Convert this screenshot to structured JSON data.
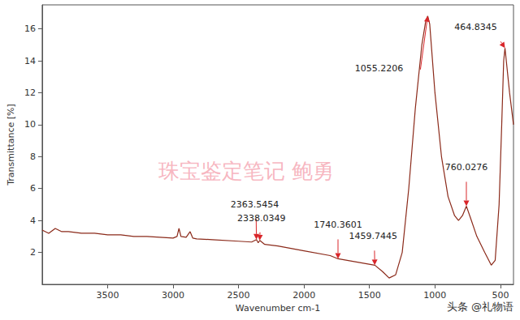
{
  "chart_data": {
    "type": "line",
    "x_label": "Wavenumber cm-1",
    "y_label": "Transmittance [%]",
    "color": "#8b2a1a",
    "grid": false,
    "x": [
      4000,
      3950,
      3900,
      3850,
      3800,
      3700,
      3600,
      3500,
      3400,
      3300,
      3200,
      3100,
      3000,
      2970,
      2955,
      2940,
      2900,
      2870,
      2850,
      2820,
      2700,
      2500,
      2400,
      2363,
      2350,
      2338,
      2300,
      2200,
      2000,
      1800,
      1740,
      1600,
      1459,
      1400,
      1350,
      1300,
      1250,
      1200,
      1150,
      1100,
      1070,
      1055,
      1040,
      1000,
      950,
      900,
      850,
      820,
      790,
      760,
      730,
      680,
      620,
      570,
      540,
      510,
      490,
      475,
      465,
      455,
      430,
      400
    ],
    "values": [
      3.4,
      3.2,
      3.5,
      3.3,
      3.3,
      3.2,
      3.2,
      3.1,
      3.1,
      3.0,
      3.0,
      2.95,
      2.9,
      3.0,
      3.5,
      3.0,
      2.95,
      3.3,
      2.9,
      2.85,
      2.8,
      2.7,
      2.65,
      2.8,
      2.6,
      2.75,
      2.5,
      2.4,
      2.1,
      1.8,
      1.6,
      1.4,
      1.2,
      0.8,
      0.4,
      0.6,
      2.0,
      6.0,
      11.0,
      15.0,
      16.5,
      16.8,
      16.3,
      12.0,
      8.0,
      5.5,
      4.3,
      4.0,
      4.3,
      4.9,
      4.2,
      3.0,
      2.0,
      1.2,
      1.5,
      5.0,
      10.0,
      14.0,
      14.8,
      14.0,
      12.0,
      10.0
    ],
    "xlim": [
      4000,
      400
    ],
    "xticks": [
      3500,
      3000,
      2500,
      2000,
      1500,
      1000,
      500
    ],
    "ylim": [
      0,
      17.5
    ],
    "yticks": [
      2,
      4,
      6,
      8,
      10,
      12,
      14,
      16
    ],
    "annotations": [
      {
        "x": 2363.5454,
        "y": 2.8,
        "label": "2363.5454"
      },
      {
        "x": 2338.0349,
        "y": 2.75,
        "label": "2338.0349"
      },
      {
        "x": 1740.3601,
        "y": 1.6,
        "label": "1740.3601"
      },
      {
        "x": 1459.7445,
        "y": 1.2,
        "label": "1459.7445"
      },
      {
        "x": 1055.2206,
        "y": 16.8,
        "label": "1055.2206"
      },
      {
        "x": 760.0276,
        "y": 4.9,
        "label": "760.0276"
      },
      {
        "x": 464.8345,
        "y": 14.8,
        "label": "464.8345"
      }
    ],
    "watermarks": [
      "珠宝鉴定笔记 鲍勇",
      "头条 @礼物语"
    ]
  }
}
